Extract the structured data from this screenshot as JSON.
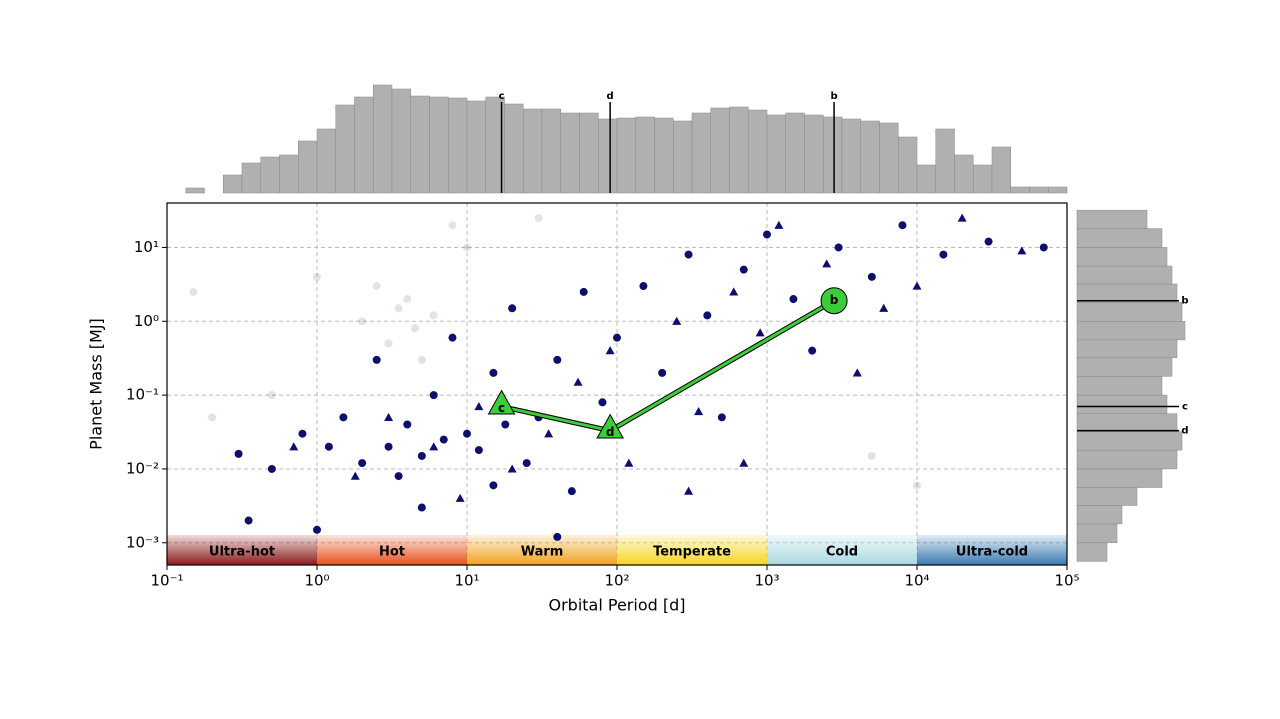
{
  "chart_data": [
    {
      "type": "scatter",
      "xlabel": "Orbital Period [d]",
      "ylabel": "Planet Mass [MJ]",
      "xscale": "log",
      "yscale": "log",
      "xlim": [
        0.1,
        100000
      ],
      "ylim": [
        0.0005,
        40
      ],
      "xticks": [
        {
          "value": 0.1,
          "label": "10⁻¹"
        },
        {
          "value": 1,
          "label": "10⁰"
        },
        {
          "value": 10,
          "label": "10¹"
        },
        {
          "value": 100,
          "label": "10²"
        },
        {
          "value": 1000,
          "label": "10³"
        },
        {
          "value": 10000,
          "label": "10⁴"
        },
        {
          "value": 100000,
          "label": "10⁵"
        }
      ],
      "yticks": [
        {
          "value": 0.001,
          "label": "10⁻³"
        },
        {
          "value": 0.01,
          "label": "10⁻²"
        },
        {
          "value": 0.1,
          "label": "10⁻¹"
        },
        {
          "value": 1,
          "label": "10⁰"
        },
        {
          "value": 10,
          "label": "10¹"
        }
      ],
      "grid": true,
      "series": [
        {
          "marker": "o",
          "color": "#0d0f6b",
          "alpha": 0.12,
          "x": [
            0.15,
            2,
            3,
            4,
            4.5,
            5,
            3.5,
            6,
            2.5,
            1,
            8,
            30,
            0.5,
            10,
            5000,
            10000,
            0.2
          ],
          "values": [
            2.5,
            1,
            0.5,
            2,
            0.8,
            0.3,
            1.5,
            1.2,
            3,
            4,
            20,
            25,
            0.1,
            10,
            0.015,
            0.006,
            0.05
          ]
        },
        {
          "marker": "o",
          "color": "#0d0f6b",
          "alpha": 1,
          "x": [
            0.3,
            0.5,
            0.8,
            1.2,
            1.5,
            2,
            2.5,
            3,
            3.5,
            4,
            5,
            6,
            7,
            8,
            10,
            12,
            15,
            18,
            20,
            25,
            30,
            40,
            50,
            60,
            80,
            100,
            150,
            200,
            300,
            400,
            500,
            700,
            1000,
            1500,
            2000,
            3000,
            5000,
            8000,
            15000,
            30000,
            70000,
            0.35,
            1,
            5,
            15,
            40
          ],
          "values": [
            0.016,
            0.01,
            0.03,
            0.02,
            0.05,
            0.012,
            0.3,
            0.02,
            0.008,
            0.04,
            0.015,
            0.1,
            0.025,
            0.6,
            0.03,
            0.018,
            0.2,
            0.04,
            1.5,
            0.012,
            0.05,
            0.3,
            0.005,
            2.5,
            0.08,
            0.6,
            3,
            0.2,
            8,
            1.2,
            0.05,
            5,
            15,
            2,
            0.4,
            10,
            4,
            20,
            8,
            12,
            10,
            0.002,
            0.0015,
            0.003,
            0.006,
            0.0012
          ]
        },
        {
          "marker": "^",
          "color": "#0d0f6b",
          "alpha": 1,
          "x": [
            0.7,
            1.8,
            3,
            6,
            9,
            12,
            20,
            35,
            55,
            90,
            120,
            250,
            350,
            600,
            900,
            1200,
            2500,
            4000,
            6000,
            10000,
            20000,
            50000,
            700,
            300
          ],
          "values": [
            0.02,
            0.008,
            0.05,
            0.02,
            0.004,
            0.07,
            0.01,
            0.03,
            0.15,
            0.4,
            0.012,
            1,
            0.06,
            2.5,
            0.7,
            20,
            6,
            0.2,
            1.5,
            3,
            25,
            9,
            0.012,
            0.005
          ]
        }
      ],
      "planets": {
        "color": "#3ccc3c",
        "items": [
          {
            "name": "c",
            "period": 17,
            "mass": 0.07,
            "marker": "^"
          },
          {
            "name": "d",
            "period": 90,
            "mass": 0.033,
            "marker": "^"
          },
          {
            "name": "b",
            "period": 2800,
            "mass": 1.9,
            "marker": "o"
          }
        ]
      },
      "zones": [
        {
          "label": "Ultra-hot",
          "range": [
            0.1,
            1
          ],
          "color": "#8b1a1a"
        },
        {
          "label": "Hot",
          "range": [
            1,
            10
          ],
          "color": "#e8501e"
        },
        {
          "label": "Warm",
          "range": [
            10,
            100
          ],
          "color": "#f0a21e"
        },
        {
          "label": "Temperate",
          "range": [
            100,
            1000
          ],
          "color": "#f5d51e"
        },
        {
          "label": "Cold",
          "range": [
            1000,
            10000
          ],
          "color": "#a8d8e0"
        },
        {
          "label": "Ultra-cold",
          "range": [
            10000,
            100000
          ],
          "color": "#3a7ab0"
        }
      ]
    },
    {
      "type": "histogram",
      "orientation": "vertical",
      "color": "#b0b0b0",
      "bins": [
        0.1,
        0.1334,
        0.1778,
        0.2371,
        0.3162,
        0.4217,
        0.5623,
        0.7499,
        1,
        1.334,
        1.778,
        2.371,
        3.162,
        4.217,
        5.623,
        7.499,
        10,
        13.34,
        17.78,
        23.71,
        31.62,
        42.17,
        56.23,
        74.99,
        100,
        133.4,
        177.8,
        237.1,
        316.2,
        421.7,
        562.3,
        749.9,
        1000,
        1334,
        1778,
        2371,
        3162,
        4217,
        5623,
        7499,
        10000,
        13340,
        17780,
        23710,
        31620,
        42170,
        56230,
        74990,
        100000
      ],
      "counts": [
        0,
        5,
        0,
        18,
        30,
        36,
        38,
        52,
        64,
        88,
        96,
        108,
        104,
        97,
        96,
        95,
        92,
        96,
        89,
        84,
        84,
        80,
        80,
        74,
        75,
        76,
        75,
        72,
        80,
        85,
        86,
        83,
        78,
        80,
        78,
        76,
        74,
        72,
        70,
        56,
        28,
        64,
        38,
        28,
        46,
        6,
        6,
        6
      ],
      "markers": [
        {
          "label": "c",
          "value": 17
        },
        {
          "label": "d",
          "value": 90
        },
        {
          "label": "b",
          "value": 2800
        }
      ]
    },
    {
      "type": "histogram",
      "orientation": "horizontal",
      "color": "#b0b0b0",
      "bins": [
        0.00056,
        0.001,
        0.0018,
        0.0032,
        0.0056,
        0.01,
        0.018,
        0.032,
        0.056,
        0.1,
        0.18,
        0.32,
        0.56,
        1,
        1.8,
        3.2,
        5.6,
        10,
        18,
        32
      ],
      "counts": [
        30,
        40,
        45,
        60,
        85,
        100,
        105,
        100,
        90,
        85,
        95,
        100,
        108,
        105,
        100,
        95,
        90,
        85,
        70
      ],
      "markers": [
        {
          "label": "b",
          "value": 1.9
        },
        {
          "label": "c",
          "value": 0.07
        },
        {
          "label": "d",
          "value": 0.033
        }
      ]
    }
  ]
}
